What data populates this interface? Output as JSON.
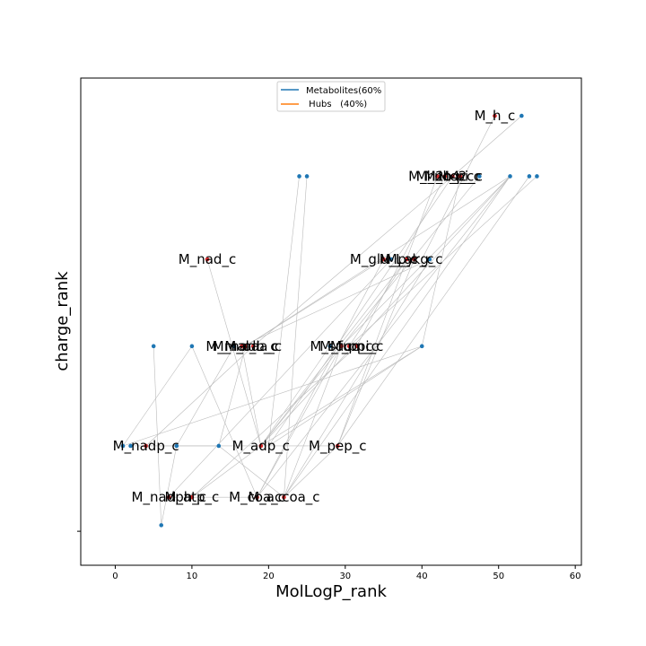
{
  "chart_data": {
    "type": "scatter",
    "title": "",
    "xlabel": "MolLogP_rank",
    "ylabel": "charge_rank",
    "xlim": [
      -4.5,
      60.8
    ],
    "ylim": [
      -0.45,
      6.0
    ],
    "xticks": [
      0,
      10,
      20,
      30,
      40,
      50,
      60
    ],
    "yticks": [
      0
    ],
    "ytick_labels": [
      ""
    ],
    "grid": false,
    "legend": {
      "position": "top-center",
      "entries": [
        {
          "label": "Metabolites(60%",
          "color": "#1f77b4"
        },
        {
          "label": " Hubs   (40%)",
          "color": "#ff7f0e"
        }
      ]
    },
    "colors": {
      "metabolite": "#1f77b4",
      "hub": "#d62728",
      "edge": "#bbbbbb"
    },
    "series": [
      {
        "name": "Metabolites",
        "points": [
          {
            "x": 6,
            "y": 0.08
          },
          {
            "x": 1,
            "y": 1.13
          },
          {
            "x": 2,
            "y": 1.13
          },
          {
            "x": 8,
            "y": 1.13
          },
          {
            "x": 13.5,
            "y": 1.13
          },
          {
            "x": 5,
            "y": 2.45
          },
          {
            "x": 10,
            "y": 2.45
          },
          {
            "x": 15.5,
            "y": 2.45
          },
          {
            "x": 28,
            "y": 2.45
          },
          {
            "x": 40,
            "y": 2.45
          },
          {
            "x": 24,
            "y": 4.7
          },
          {
            "x": 25,
            "y": 4.7
          },
          {
            "x": 47.5,
            "y": 4.7
          },
          {
            "x": 51.5,
            "y": 4.7
          },
          {
            "x": 54,
            "y": 4.7
          },
          {
            "x": 55,
            "y": 4.7
          },
          {
            "x": 36,
            "y": 3.6
          },
          {
            "x": 41,
            "y": 3.6
          },
          {
            "x": 53,
            "y": 5.5
          }
        ]
      },
      {
        "name": "Hubs",
        "points": [
          {
            "x": 49.5,
            "y": 5.5,
            "label": "M_h_c"
          },
          {
            "x": 44,
            "y": 4.7,
            "label": "M_co2_c"
          },
          {
            "x": 42,
            "y": 4.7,
            "label": "M_h2o_c"
          },
          {
            "x": 43,
            "y": 4.7,
            "label": "M_nh4_c"
          },
          {
            "x": 45,
            "y": 4.7,
            "label": "M_pi_c"
          },
          {
            "x": 12,
            "y": 3.6,
            "label": "M_nad_c"
          },
          {
            "x": 35,
            "y": 3.6,
            "label": "M_glu_L_c"
          },
          {
            "x": 38,
            "y": 3.6,
            "label": "M_pyr_c"
          },
          {
            "x": 39,
            "y": 3.6,
            "label": "M_akg_c"
          },
          {
            "x": 17,
            "y": 2.45,
            "label": "M_nadh_c"
          },
          {
            "x": 16.5,
            "y": 2.45,
            "label": "M_mal_L_c"
          },
          {
            "x": 18,
            "y": 2.45,
            "label": "M_oaa_c"
          },
          {
            "x": 29.5,
            "y": 2.45,
            "label": "M_succ_c"
          },
          {
            "x": 30.5,
            "y": 2.45,
            "label": "M_fum_c"
          },
          {
            "x": 31.5,
            "y": 2.45,
            "label": "M_ppi_c"
          },
          {
            "x": 4,
            "y": 1.13,
            "label": "M_nadp_c"
          },
          {
            "x": 19,
            "y": 1.13,
            "label": "M_adp_c"
          },
          {
            "x": 29,
            "y": 1.13,
            "label": "M_pep_c"
          },
          {
            "x": 7,
            "y": 0.45,
            "label": "M_nadph_c"
          },
          {
            "x": 10,
            "y": 0.45,
            "label": "M_atp_c"
          },
          {
            "x": 18.5,
            "y": 0.45,
            "label": "M_coa_c"
          },
          {
            "x": 22,
            "y": 0.45,
            "label": "M_accoa_c"
          }
        ]
      }
    ],
    "edges": [
      [
        12,
        3.6,
        19,
        1.13
      ],
      [
        24,
        4.7,
        20,
        1.13
      ],
      [
        25,
        4.7,
        22,
        0.45
      ],
      [
        49.5,
        5.5,
        40,
        3.6
      ],
      [
        53,
        5.5,
        44,
        4.7
      ],
      [
        51.5,
        4.7,
        17,
        2.45
      ],
      [
        51.5,
        4.7,
        19,
        1.13
      ],
      [
        51.5,
        4.7,
        22,
        0.45
      ],
      [
        51.5,
        4.7,
        29.5,
        2.45
      ],
      [
        51.5,
        4.7,
        18.5,
        0.45
      ],
      [
        47.5,
        4.7,
        19,
        1.13
      ],
      [
        44,
        4.7,
        20,
        1.13
      ],
      [
        42,
        4.7,
        29,
        1.13
      ],
      [
        43,
        4.7,
        31.5,
        2.45
      ],
      [
        45,
        4.7,
        40,
        2.45
      ],
      [
        41,
        3.6,
        16.5,
        2.45
      ],
      [
        41,
        3.6,
        22,
        0.45
      ],
      [
        38,
        3.6,
        19,
        1.13
      ],
      [
        38,
        3.6,
        30.5,
        2.45
      ],
      [
        35,
        3.6,
        17,
        2.45
      ],
      [
        35,
        3.6,
        18.5,
        0.45
      ],
      [
        36,
        3.6,
        7,
        0.45
      ],
      [
        39,
        3.6,
        29,
        1.13
      ],
      [
        40,
        2.45,
        1,
        1.13
      ],
      [
        40,
        2.45,
        20,
        1.13
      ],
      [
        28,
        2.45,
        19,
        1.13
      ],
      [
        31.5,
        2.45,
        10,
        0.45
      ],
      [
        29.5,
        2.45,
        22,
        0.45
      ],
      [
        18,
        2.45,
        4,
        1.13
      ],
      [
        17,
        2.45,
        13.5,
        1.13
      ],
      [
        16.5,
        2.45,
        19,
        1.13
      ],
      [
        15.5,
        2.45,
        8,
        1.13
      ],
      [
        10,
        2.45,
        18.5,
        0.45
      ],
      [
        5,
        2.45,
        6,
        0.08
      ],
      [
        2,
        1.13,
        19,
        1.13
      ],
      [
        4,
        1.13,
        13.5,
        1.13
      ],
      [
        19,
        1.13,
        29,
        1.13
      ],
      [
        8,
        1.13,
        6,
        0.08
      ],
      [
        13.5,
        1.13,
        22,
        0.45
      ],
      [
        10,
        0.45,
        19,
        1.13
      ],
      [
        7,
        0.45,
        18.5,
        0.45
      ],
      [
        22,
        0.45,
        29,
        1.13
      ],
      [
        18.5,
        0.45,
        29.5,
        2.45
      ],
      [
        19,
        1.13,
        40,
        2.45
      ],
      [
        1,
        1.13,
        10,
        2.45
      ],
      [
        44,
        4.7,
        18,
        2.45
      ],
      [
        55,
        4.7,
        30.5,
        2.45
      ],
      [
        54,
        4.7,
        29,
        1.13
      ]
    ]
  }
}
